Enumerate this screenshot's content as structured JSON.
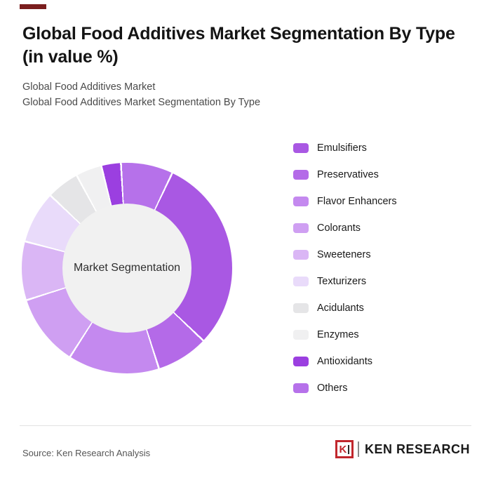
{
  "header": {
    "accent_color": "#7a1e1e",
    "title_line1": "Global Food Additives Market Segmentation By Type",
    "title_line2": "(in value %)",
    "subtitle_line1": "Global Food Additives Market",
    "subtitle_line2": "Global Food Additives Market Segmentation By Type"
  },
  "chart_data": {
    "type": "pie",
    "donut": true,
    "title": "Global Food Additives Market Segmentation By Type (in value %)",
    "center_label": "Market Segmentation",
    "legend_position": "right",
    "start_angle_deg": 25,
    "categories": [
      "Emulsifiers",
      "Preservatives",
      "Flavor Enhancers",
      "Colorants",
      "Sweeteners",
      "Texturizers",
      "Acidulants",
      "Enzymes",
      "Antioxidants",
      "Others"
    ],
    "values": [
      30,
      8,
      14,
      11,
      9,
      8,
      5,
      4,
      3,
      8
    ],
    "colors": [
      "#a958e3",
      "#b46ae8",
      "#c489ef",
      "#cf9ff2",
      "#dab6f5",
      "#e9dbfa",
      "#e5e5e7",
      "#f0f0f1",
      "#9b3fe0",
      "#b671ea"
    ],
    "hole_color": "#f1f1f1"
  },
  "footer": {
    "source": "Source: Ken Research Analysis",
    "logo": {
      "letter": "K",
      "wordmark": "KEN RESEARCH",
      "accent_color": "#c1272d"
    }
  }
}
